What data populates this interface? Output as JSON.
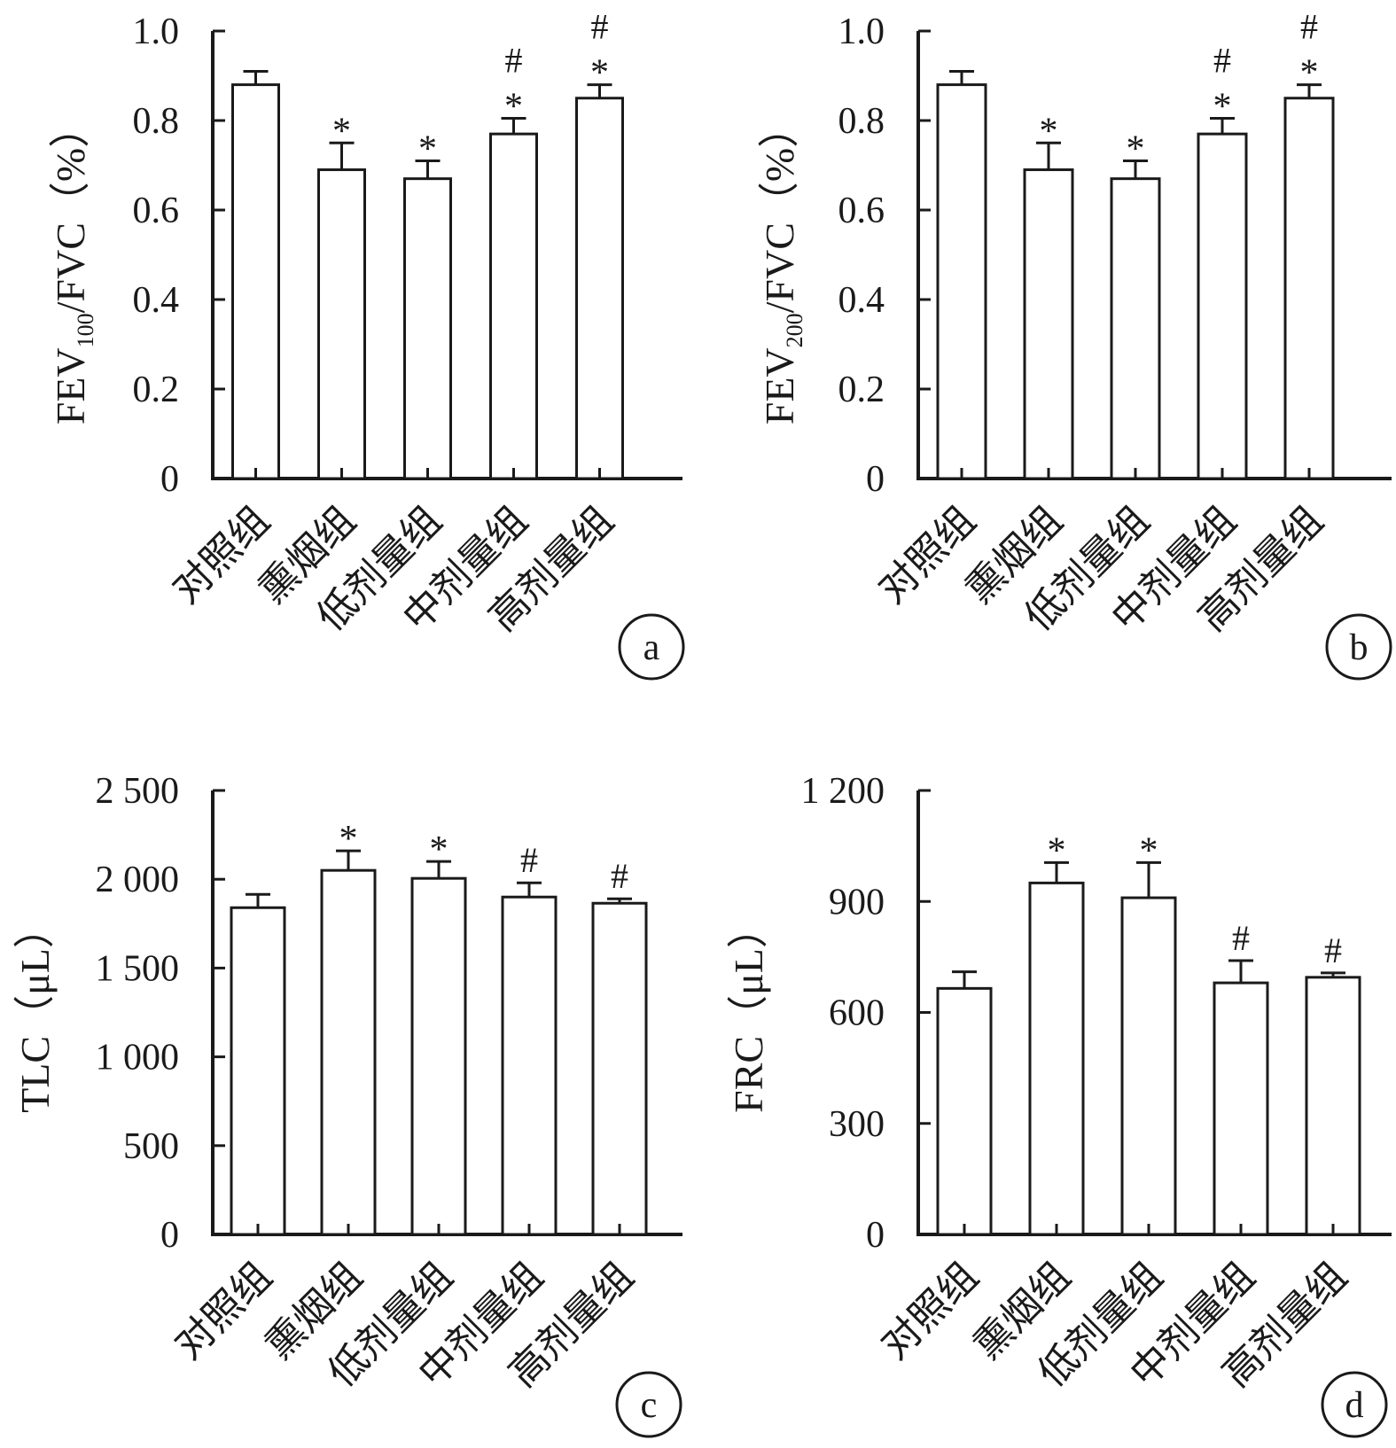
{
  "chart_data": [
    {
      "panel_label": "a",
      "type": "bar",
      "ylabel_main": "FEV",
      "ylabel_sub": "100",
      "ylabel_rest": "/FVC（%）",
      "ylim": [
        0,
        1.0
      ],
      "yticks": [
        0,
        0.2,
        0.4,
        0.6,
        0.8,
        1.0
      ],
      "ytick_labels": [
        "0",
        "0.2",
        "0.4",
        "0.6",
        "0.8",
        "1.0"
      ],
      "categories": [
        "对照组",
        "熏烟组",
        "低剂量组",
        "中剂量组",
        "高剂量组"
      ],
      "values": [
        0.88,
        0.69,
        0.67,
        0.77,
        0.85
      ],
      "errors": [
        0.03,
        0.06,
        0.04,
        0.035,
        0.03
      ],
      "annotations": [
        [],
        [
          "*"
        ],
        [
          "*"
        ],
        [
          "*",
          "#"
        ],
        [
          "*",
          "#"
        ]
      ],
      "grid": false
    },
    {
      "panel_label": "b",
      "type": "bar",
      "ylabel_main": "FEV",
      "ylabel_sub": "200",
      "ylabel_rest": "/FVC（%）",
      "ylim": [
        0,
        1.0
      ],
      "yticks": [
        0,
        0.2,
        0.4,
        0.6,
        0.8,
        1.0
      ],
      "ytick_labels": [
        "0",
        "0.2",
        "0.4",
        "0.6",
        "0.8",
        "1.0"
      ],
      "categories": [
        "对照组",
        "熏烟组",
        "低剂量组",
        "中剂量组",
        "高剂量组"
      ],
      "values": [
        0.88,
        0.69,
        0.67,
        0.77,
        0.85
      ],
      "errors": [
        0.03,
        0.06,
        0.04,
        0.035,
        0.03
      ],
      "annotations": [
        [],
        [
          "*"
        ],
        [
          "*"
        ],
        [
          "*",
          "#"
        ],
        [
          "*",
          "#"
        ]
      ],
      "grid": false
    },
    {
      "panel_label": "c",
      "type": "bar",
      "ylabel_main": "TLC（μL）",
      "ylabel_sub": "",
      "ylabel_rest": "",
      "ylim": [
        0,
        2500
      ],
      "yticks": [
        0,
        500,
        1000,
        1500,
        2000,
        2500
      ],
      "ytick_labels": [
        "0",
        "500",
        "1 000",
        "1 500",
        "2 000",
        "2 500"
      ],
      "categories": [
        "对照组",
        "熏烟组",
        "低剂量组",
        "中剂量组",
        "高剂量组"
      ],
      "values": [
        1840,
        2050,
        2005,
        1900,
        1865
      ],
      "errors": [
        75,
        110,
        95,
        80,
        25
      ],
      "annotations": [
        [],
        [
          "*"
        ],
        [
          "*"
        ],
        [
          "#"
        ],
        [
          "#"
        ]
      ],
      "grid": false
    },
    {
      "panel_label": "d",
      "type": "bar",
      "ylabel_main": "FRC（μL）",
      "ylabel_sub": "",
      "ylabel_rest": "",
      "ylim": [
        0,
        1200
      ],
      "yticks": [
        0,
        300,
        600,
        900,
        1200
      ],
      "ytick_labels": [
        "0",
        "300",
        "600",
        "900",
        "1 200"
      ],
      "categories": [
        "对照组",
        "熏烟组",
        "低剂量组",
        "中剂量组",
        "高剂量组"
      ],
      "values": [
        665,
        950,
        910,
        680,
        695
      ],
      "errors": [
        45,
        55,
        95,
        60,
        12
      ],
      "annotations": [
        [],
        [
          "*"
        ],
        [
          "*"
        ],
        [
          "#"
        ],
        [
          "#"
        ]
      ],
      "grid": false
    }
  ]
}
